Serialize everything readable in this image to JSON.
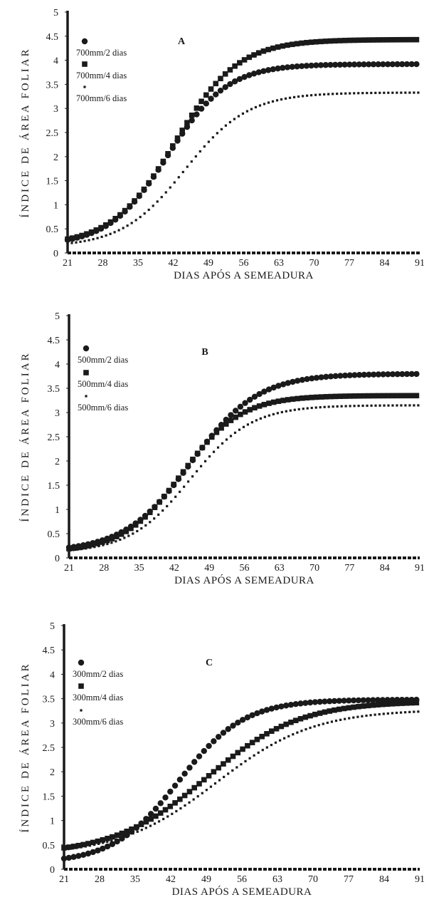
{
  "figure": {
    "ylabel": "ÍNDICE DE ÁREA FOLIAR",
    "xlabel": "DIAS APÓS A SEMEADURA"
  },
  "chart_data": [
    {
      "type": "scatter",
      "panel_label": "A",
      "xlabel": "DIAS APÓS A SEMEADURA",
      "ylabel": "ÍNDICE DE ÁREA FOLIAR",
      "x_ticks": [
        21,
        28,
        35,
        42,
        49,
        56,
        63,
        70,
        77,
        84,
        91
      ],
      "y_ticks": [
        0,
        0.5,
        1,
        1.5,
        2,
        2.5,
        3,
        3.5,
        4,
        4.5,
        5
      ],
      "xlim": [
        21,
        91
      ],
      "ylim": [
        0,
        5
      ],
      "legend_position": "top-left",
      "series": [
        {
          "name": "700mm/2 dias",
          "marker": "circle",
          "start": 0.15,
          "end": 3.92,
          "mid": 41,
          "k": 0.17
        },
        {
          "name": "700mm/4 dias",
          "marker": "square",
          "start": 0.15,
          "end": 4.43,
          "mid": 42.3,
          "k": 0.16
        },
        {
          "name": "700mm/6 dias",
          "marker": "dash",
          "start": 0.12,
          "end": 3.33,
          "mid": 44.3,
          "k": 0.16
        }
      ]
    },
    {
      "type": "scatter",
      "panel_label": "B",
      "xlabel": "DIAS APÓS A SEMEADURA",
      "ylabel": "ÍNDICE DE ÁREA FOLIAR",
      "x_ticks": [
        21,
        28,
        35,
        42,
        49,
        56,
        63,
        70,
        77,
        84,
        91
      ],
      "y_ticks": [
        0,
        0.5,
        1,
        1.5,
        2,
        2.5,
        3,
        3.5,
        4,
        4.5,
        5
      ],
      "xlim": [
        21,
        91
      ],
      "ylim": [
        0,
        5
      ],
      "legend_position": "top-left",
      "series": [
        {
          "name": "500mm/2 dias",
          "marker": "circle",
          "start": 0.12,
          "end": 3.8,
          "mid": 45.3,
          "k": 0.15
        },
        {
          "name": "500mm/4 dias",
          "marker": "square",
          "start": 0.12,
          "end": 3.35,
          "mid": 43.5,
          "k": 0.17
        },
        {
          "name": "500mm/6 dias",
          "marker": "dash",
          "start": 0.1,
          "end": 3.15,
          "mid": 45.2,
          "k": 0.165
        }
      ]
    },
    {
      "type": "scatter",
      "panel_label": "C",
      "xlabel": "DIAS APÓS A SEMEADURA",
      "ylabel": "ÍNDICE DE ÁREA FOLIAR",
      "x_ticks": [
        21,
        28,
        35,
        42,
        49,
        56,
        63,
        70,
        77,
        84,
        91
      ],
      "y_ticks": [
        0,
        0.5,
        1,
        1.5,
        2,
        2.5,
        3,
        3.5,
        4,
        4.5,
        5
      ],
      "xlim": [
        21,
        91
      ],
      "ylim": [
        0,
        5
      ],
      "legend_position": "top-left",
      "series": [
        {
          "name": "300mm/2 dias",
          "marker": "circle",
          "start": 0.12,
          "end": 3.48,
          "mid": 43.5,
          "k": 0.155
        },
        {
          "name": "300mm/4 dias",
          "marker": "square",
          "start": 0.3,
          "end": 3.45,
          "mid": 49,
          "k": 0.11
        },
        {
          "name": "300mm/6 dias",
          "marker": "dash",
          "start": 0.28,
          "end": 3.28,
          "mid": 51,
          "k": 0.105
        }
      ]
    }
  ]
}
